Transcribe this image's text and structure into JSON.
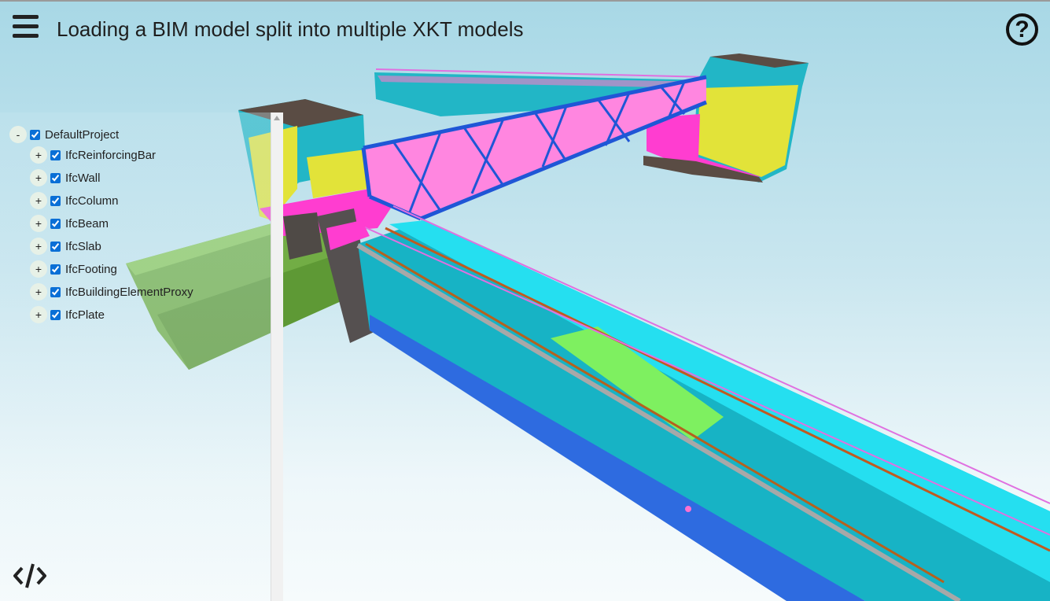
{
  "header": {
    "title": "Loading a BIM model split into multiple XKT models",
    "menu_icon": "hamburger-menu-icon",
    "help_icon": "help-icon",
    "help_glyph": "?"
  },
  "tree": {
    "root": {
      "label": "DefaultProject",
      "toggle": "-",
      "checked": true
    },
    "items": [
      {
        "label": "IfcReinforcingBar",
        "toggle": "+",
        "checked": true
      },
      {
        "label": "IfcWall",
        "toggle": "+",
        "checked": true
      },
      {
        "label": "IfcColumn",
        "toggle": "+",
        "checked": true
      },
      {
        "label": "IfcBeam",
        "toggle": "+",
        "checked": true
      },
      {
        "label": "IfcSlab",
        "toggle": "+",
        "checked": true
      },
      {
        "label": "IfcFooting",
        "toggle": "+",
        "checked": true
      },
      {
        "label": "IfcBuildingElementProxy",
        "toggle": "+",
        "checked": true
      },
      {
        "label": "IfcPlate",
        "toggle": "+",
        "checked": true
      }
    ]
  },
  "footer": {
    "code_icon": "code-icon"
  },
  "colors": {
    "cyan": "#21b8c9",
    "magenta": "#ff3dd0",
    "yellow": "#e2e339",
    "blue": "#1f56d6",
    "green": "#6fae3c",
    "brown": "#5a4c44"
  }
}
